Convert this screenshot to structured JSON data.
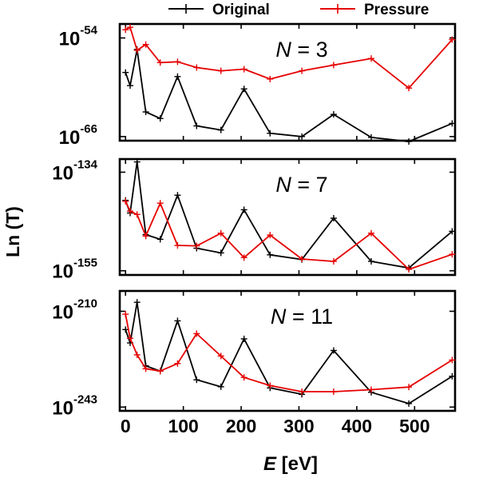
{
  "chart_data": {
    "type": "line",
    "xlabel_italic": "E",
    "xlabel_rest": " [eV]",
    "ylabel": "Ln (T)",
    "x_ticks": [
      "0",
      "100",
      "200",
      "300",
      "400",
      "500"
    ],
    "xlim": [
      -10,
      570
    ],
    "legend": {
      "position": "top",
      "entries": [
        {
          "name": "Original",
          "color": "#000000"
        },
        {
          "name": "Pressure",
          "color": "#e60000"
        }
      ]
    },
    "panels": [
      {
        "label_var": "N",
        "label_rest": " = 3",
        "y_top": {
          "base": "10",
          "exp": "-54"
        },
        "y_bottom": {
          "base": "10",
          "exp": "-66"
        },
        "ylim": [
          -66.5,
          -52.3
        ],
        "series": [
          {
            "name": "Original",
            "color": "#000000",
            "x": [
              0,
              8,
              20,
              35,
              60,
              90,
              123,
              165,
              205,
              250,
              305,
              360,
              425,
              490,
              565
            ],
            "y": [
              -58.2,
              -59.8,
              -55.4,
              -63.0,
              -63.8,
              -58.7,
              -64.7,
              -65.2,
              -60.2,
              -65.6,
              -66.0,
              -63.3,
              -66.1,
              -66.6,
              -64.4
            ]
          },
          {
            "name": "Pressure",
            "color": "#e60000",
            "x": [
              0,
              8,
              20,
              35,
              60,
              90,
              123,
              165,
              205,
              250,
              305,
              360,
              425,
              490,
              565
            ],
            "y": [
              -53.0,
              -52.7,
              -55.5,
              -54.8,
              -57.0,
              -56.9,
              -57.6,
              -58.0,
              -57.8,
              -59.0,
              -58.0,
              -57.3,
              -56.5,
              -60.1,
              -54.2
            ]
          }
        ]
      },
      {
        "label_var": "N",
        "label_rest": " = 7",
        "y_top": {
          "base": "10",
          "exp": "-134"
        },
        "y_bottom": {
          "base": "10",
          "exp": "-155"
        },
        "ylim": [
          -155.9,
          -131.2
        ],
        "series": [
          {
            "name": "Original",
            "color": "#000000",
            "x": [
              0,
              8,
              20,
              35,
              60,
              90,
              123,
              165,
              205,
              250,
              305,
              360,
              425,
              490,
              565
            ],
            "y": [
              -140.0,
              -142.7,
              -131.8,
              -147.3,
              -148.3,
              -138.9,
              -150.2,
              -151.2,
              -142.0,
              -151.6,
              -152.6,
              -143.8,
              -153.0,
              -154.4,
              -146.6
            ]
          },
          {
            "name": "Pressure",
            "color": "#e60000",
            "x": [
              0,
              8,
              20,
              35,
              60,
              90,
              123,
              165,
              205,
              250,
              305,
              360,
              425,
              490,
              565
            ],
            "y": [
              -140.2,
              -142.3,
              -143.0,
              -147.6,
              -140.6,
              -149.6,
              -149.7,
              -147.0,
              -152.2,
              -147.4,
              -152.5,
              -153.0,
              -147.0,
              -154.7,
              -151.5
            ]
          }
        ]
      },
      {
        "label_var": "N",
        "label_rest": " = 11",
        "y_top": {
          "base": "10",
          "exp": "-210"
        },
        "y_bottom": {
          "base": "10",
          "exp": "-243"
        },
        "ylim": [
          -244.3,
          -203.0
        ],
        "series": [
          {
            "name": "Original",
            "color": "#000000",
            "x": [
              0,
              8,
              20,
              35,
              60,
              90,
              123,
              165,
              205,
              250,
              305,
              360,
              425,
              490,
              565
            ],
            "y": [
              -216.3,
              -220.9,
              -206.9,
              -228.8,
              -230.6,
              -213.3,
              -233.6,
              -236.0,
              -219.5,
              -236.4,
              -238.6,
              -223.5,
              -237.9,
              -241.8,
              -232.4
            ]
          },
          {
            "name": "Pressure",
            "color": "#e60000",
            "x": [
              0,
              8,
              20,
              35,
              60,
              90,
              123,
              165,
              205,
              250,
              305,
              360,
              425,
              490,
              565
            ],
            "y": [
              -211.0,
              -219.3,
              -225.0,
              -229.8,
              -230.6,
              -228.0,
              -217.7,
              -225.4,
              -232.8,
              -235.6,
              -237.7,
              -237.7,
              -237.0,
              -236.1,
              -226.8
            ]
          }
        ]
      }
    ]
  }
}
